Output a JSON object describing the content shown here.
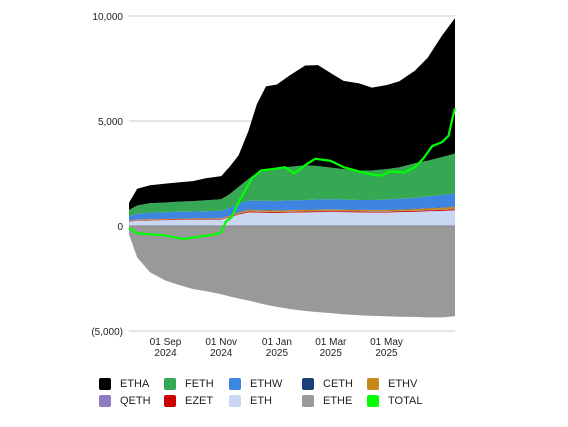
{
  "chart_data": {
    "type": "area",
    "title": "",
    "xlabel": "",
    "ylabel": "",
    "ylim": [
      -5000,
      10000
    ],
    "y_ticks": [
      {
        "value": 10000,
        "label": "10,000"
      },
      {
        "value": 5000,
        "label": "5,000"
      },
      {
        "value": 0,
        "label": "0"
      },
      {
        "value": -5000,
        "label": "(5,000)"
      }
    ],
    "x_range": [
      "2024-07-23",
      "2025-07-15"
    ],
    "x_ticks": [
      {
        "date": "2024-09-01",
        "line1": "01 Sep",
        "line2": "2024"
      },
      {
        "date": "2024-11-01",
        "line1": "01 Nov",
        "line2": "2024"
      },
      {
        "date": "2025-01-01",
        "line1": "01 Jan",
        "line2": "2025"
      },
      {
        "date": "2025-03-01",
        "line1": "01 Mar",
        "line2": "2025"
      },
      {
        "date": "2025-05-01",
        "line1": "01 May",
        "line2": "2025"
      }
    ],
    "grid": "horizontal",
    "legend_position": "bottom",
    "dates": [
      "2024-07-23",
      "2024-08-01",
      "2024-08-15",
      "2024-09-01",
      "2024-09-15",
      "2024-10-01",
      "2024-10-15",
      "2024-11-01",
      "2024-11-10",
      "2024-11-20",
      "2024-12-01",
      "2024-12-10",
      "2024-12-20",
      "2025-01-01",
      "2025-01-15",
      "2025-02-01",
      "2025-02-15",
      "2025-03-01",
      "2025-03-15",
      "2025-04-01",
      "2025-04-15",
      "2025-05-01",
      "2025-05-15",
      "2025-06-01",
      "2025-06-15",
      "2025-07-01",
      "2025-07-15"
    ],
    "stacked_series": [
      {
        "name": "ETH",
        "color": "#c9d7f2",
        "values": [
          200,
          250,
          270,
          280,
          290,
          290,
          300,
          310,
          400,
          550,
          650,
          640,
          630,
          620,
          640,
          650,
          660,
          670,
          660,
          650,
          640,
          640,
          660,
          680,
          700,
          720,
          750
        ]
      },
      {
        "name": "EZET",
        "color": "#cc0000",
        "values": [
          20,
          20,
          25,
          25,
          25,
          25,
          25,
          25,
          30,
          35,
          40,
          40,
          40,
          40,
          40,
          40,
          40,
          40,
          40,
          40,
          40,
          40,
          40,
          40,
          45,
          45,
          50
        ]
      },
      {
        "name": "QETH",
        "color": "#8e7cc3",
        "values": [
          10,
          10,
          10,
          10,
          10,
          10,
          10,
          10,
          10,
          15,
          15,
          15,
          15,
          15,
          15,
          15,
          15,
          15,
          15,
          15,
          15,
          15,
          15,
          15,
          15,
          15,
          15
        ]
      },
      {
        "name": "ETHV",
        "color": "#c68a1a",
        "values": [
          20,
          25,
          25,
          25,
          25,
          30,
          30,
          30,
          40,
          50,
          60,
          60,
          60,
          60,
          60,
          60,
          60,
          60,
          60,
          60,
          60,
          60,
          60,
          70,
          80,
          90,
          100
        ]
      },
      {
        "name": "CETH",
        "color": "#1c3f7a",
        "values": [
          10,
          10,
          10,
          10,
          10,
          10,
          10,
          10,
          10,
          15,
          15,
          15,
          15,
          15,
          15,
          15,
          15,
          15,
          15,
          15,
          15,
          15,
          15,
          15,
          15,
          15,
          15
        ]
      },
      {
        "name": "ETHW",
        "color": "#3d85e0",
        "values": [
          200,
          260,
          300,
          300,
          310,
          320,
          330,
          340,
          370,
          400,
          420,
          430,
          440,
          440,
          450,
          460,
          470,
          480,
          470,
          460,
          470,
          490,
          500,
          520,
          550,
          600,
          620
        ]
      },
      {
        "name": "FETH",
        "color": "#36a853",
        "values": [
          300,
          400,
          450,
          470,
          490,
          500,
          520,
          550,
          650,
          800,
          1050,
          1300,
          1450,
          1550,
          1600,
          1650,
          1600,
          1500,
          1450,
          1400,
          1400,
          1450,
          1500,
          1650,
          1700,
          1800,
          1900
        ]
      },
      {
        "name": "ETHA",
        "color": "#000000",
        "values": [
          350,
          800,
          850,
          900,
          920,
          950,
          1050,
          1100,
          1300,
          1500,
          2300,
          3300,
          4000,
          4000,
          4350,
          4750,
          4800,
          4500,
          4200,
          4150,
          3950,
          4000,
          4100,
          4400,
          4900,
          5800,
          6450
        ]
      }
    ],
    "negative_series": {
      "name": "ETHE",
      "color": "#999999",
      "values": [
        -400,
        -1500,
        -2200,
        -2600,
        -2800,
        -3000,
        -3100,
        -3250,
        -3350,
        -3450,
        -3550,
        -3650,
        -3750,
        -3850,
        -3950,
        -4050,
        -4100,
        -4150,
        -4200,
        -4250,
        -4280,
        -4300,
        -4320,
        -4330,
        -4350,
        -4350,
        -4300
      ]
    },
    "line_series": {
      "name": "TOTAL",
      "color": "#00ff00",
      "points": [
        [
          "2024-07-23",
          -100
        ],
        [
          "2024-08-01",
          -350
        ],
        [
          "2024-09-01",
          -450
        ],
        [
          "2024-09-20",
          -620
        ],
        [
          "2024-10-05",
          -520
        ],
        [
          "2024-10-25",
          -400
        ],
        [
          "2024-11-01",
          -300
        ],
        [
          "2024-11-06",
          200
        ],
        [
          "2024-11-12",
          400
        ],
        [
          "2024-11-22",
          1300
        ],
        [
          "2024-12-05",
          2300
        ],
        [
          "2024-12-15",
          2650
        ],
        [
          "2024-12-25",
          2700
        ],
        [
          "2025-01-10",
          2800
        ],
        [
          "2025-01-20",
          2500
        ],
        [
          "2025-02-01",
          2900
        ],
        [
          "2025-02-12",
          3200
        ],
        [
          "2025-03-01",
          3100
        ],
        [
          "2025-03-15",
          2800
        ],
        [
          "2025-04-01",
          2600
        ],
        [
          "2025-04-15",
          2450
        ],
        [
          "2025-04-25",
          2400
        ],
        [
          "2025-05-05",
          2600
        ],
        [
          "2025-05-20",
          2550
        ],
        [
          "2025-06-01",
          2800
        ],
        [
          "2025-06-10",
          3200
        ],
        [
          "2025-06-20",
          3800
        ],
        [
          "2025-07-01",
          4000
        ],
        [
          "2025-07-08",
          4300
        ],
        [
          "2025-07-12",
          5100
        ],
        [
          "2025-07-15",
          5600
        ]
      ]
    },
    "legend": [
      {
        "name": "ETHA",
        "color": "#000000"
      },
      {
        "name": "FETH",
        "color": "#36a853"
      },
      {
        "name": "ETHW",
        "color": "#3d85e0"
      },
      {
        "name": "CETH",
        "color": "#1c3f7a"
      },
      {
        "name": "ETHV",
        "color": "#c68a1a"
      },
      {
        "name": "QETH",
        "color": "#8e7cc3"
      },
      {
        "name": "EZET",
        "color": "#cc0000"
      },
      {
        "name": "ETH",
        "color": "#c9d7f2"
      },
      {
        "name": "ETHE",
        "color": "#999999"
      },
      {
        "name": "TOTAL",
        "color": "#00ff00"
      }
    ]
  }
}
